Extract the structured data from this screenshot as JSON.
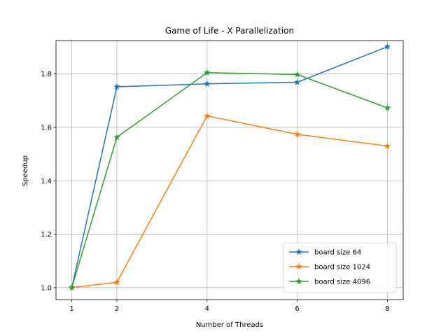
{
  "chart_data": {
    "type": "line",
    "title": "Game of Life - X Parallelization",
    "xlabel": "Number of Threads",
    "ylabel": "Speedup",
    "x": [
      1,
      2,
      4,
      6,
      8
    ],
    "x_ticks": [
      1,
      2,
      4,
      6,
      8
    ],
    "xlim": [
      0.65,
      8.35
    ],
    "ylim": [
      0.955,
      1.925
    ],
    "y_ticks": [
      1.0,
      1.2,
      1.4,
      1.6,
      1.8
    ],
    "y_tick_labels": [
      "1.0",
      "1.2",
      "1.4",
      "1.6",
      "1.8"
    ],
    "grid": true,
    "legend_position": "lower-right",
    "marker": "star",
    "series": [
      {
        "name": "board size 64",
        "color": "#1f77b4",
        "values": [
          1.0,
          1.752,
          1.763,
          1.769,
          1.902
        ]
      },
      {
        "name": "board size 1024",
        "color": "#ff7f0e",
        "values": [
          1.0,
          1.02,
          1.643,
          1.574,
          1.53
        ]
      },
      {
        "name": "board size 4096",
        "color": "#2ca02c",
        "values": [
          1.0,
          1.563,
          1.805,
          1.798,
          1.673
        ]
      }
    ]
  }
}
